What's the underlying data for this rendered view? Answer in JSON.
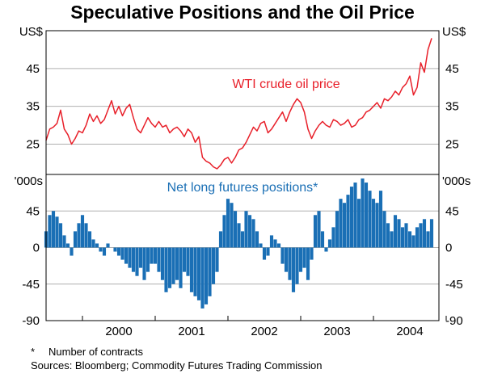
{
  "title": "Speculative Positions and the Oil Price",
  "colors": {
    "oil": "#e8202a",
    "positions": "#1a6fb5",
    "axis": "#000000",
    "grid": "#b0b0b0"
  },
  "chart_data": [
    {
      "type": "line",
      "name": "top-panel",
      "label": "WTI crude oil price",
      "unit_label": "US$",
      "ylim": [
        17,
        55
      ],
      "yticks": [
        25,
        35,
        45
      ],
      "x_range": [
        1999.5,
        2004.9
      ],
      "series": [
        {
          "name": "WTI crude oil price",
          "x": [
            1999.5,
            1999.55,
            1999.6,
            1999.65,
            1999.7,
            1999.75,
            1999.8,
            1999.85,
            1999.9,
            1999.95,
            2000.0,
            2000.05,
            2000.1,
            2000.15,
            2000.2,
            2000.25,
            2000.3,
            2000.35,
            2000.4,
            2000.45,
            2000.5,
            2000.55,
            2000.6,
            2000.65,
            2000.7,
            2000.75,
            2000.8,
            2000.85,
            2000.9,
            2000.95,
            2001.0,
            2001.05,
            2001.1,
            2001.15,
            2001.2,
            2001.25,
            2001.3,
            2001.35,
            2001.4,
            2001.45,
            2001.5,
            2001.55,
            2001.6,
            2001.65,
            2001.7,
            2001.75,
            2001.8,
            2001.85,
            2001.9,
            2001.95,
            2002.0,
            2002.05,
            2002.1,
            2002.15,
            2002.2,
            2002.25,
            2002.3,
            2002.35,
            2002.4,
            2002.45,
            2002.5,
            2002.55,
            2002.6,
            2002.65,
            2002.7,
            2002.75,
            2002.8,
            2002.85,
            2002.9,
            2002.95,
            2003.0,
            2003.05,
            2003.1,
            2003.15,
            2003.2,
            2003.25,
            2003.3,
            2003.35,
            2003.4,
            2003.45,
            2003.5,
            2003.55,
            2003.6,
            2003.65,
            2003.7,
            2003.75,
            2003.8,
            2003.85,
            2003.9,
            2003.95,
            2004.0,
            2004.05,
            2004.1,
            2004.15,
            2004.2,
            2004.25,
            2004.3,
            2004.35,
            2004.4,
            2004.45,
            2004.5,
            2004.55,
            2004.6,
            2004.65,
            2004.7,
            2004.75,
            2004.8
          ],
          "values": [
            26,
            29,
            29.5,
            30.5,
            34,
            29,
            27.5,
            25,
            26.5,
            28.5,
            28,
            30,
            33,
            31,
            32.5,
            30.5,
            31.5,
            34,
            36.5,
            33,
            35,
            32.5,
            34.5,
            35.5,
            32,
            29,
            28,
            30,
            32,
            30.5,
            29.5,
            31,
            29.5,
            30,
            28,
            29,
            29.5,
            28.5,
            27,
            29,
            28,
            25.5,
            27,
            21.5,
            20.5,
            20,
            19,
            18.5,
            19.5,
            21,
            21.5,
            20,
            21.5,
            23.5,
            24,
            25.5,
            27.5,
            29.5,
            28.5,
            30.5,
            31,
            28,
            29,
            30.5,
            32,
            33.5,
            31,
            33.5,
            35.5,
            37,
            36,
            33.5,
            29,
            26.5,
            28.5,
            30,
            31,
            30,
            29.5,
            31.5,
            31,
            30,
            30.5,
            31.5,
            29.5,
            30,
            31.5,
            32,
            33.5,
            34,
            35,
            36,
            34.5,
            37,
            36.5,
            37.5,
            39,
            38,
            40,
            41,
            43,
            38,
            40,
            46.5,
            44,
            50,
            53
          ]
        }
      ]
    },
    {
      "type": "bar",
      "name": "bottom-panel",
      "label": "Net long futures positions*",
      "unit_label": "'000s",
      "ylim": [
        -90,
        90
      ],
      "yticks": [
        45,
        0,
        -45,
        -90
      ],
      "x_range": [
        1999.5,
        2004.9
      ],
      "x": [
        1999.5,
        1999.55,
        1999.6,
        1999.65,
        1999.7,
        1999.75,
        1999.8,
        1999.85,
        1999.9,
        1999.95,
        2000.0,
        2000.05,
        2000.1,
        2000.15,
        2000.2,
        2000.25,
        2000.3,
        2000.35,
        2000.4,
        2000.45,
        2000.5,
        2000.55,
        2000.6,
        2000.65,
        2000.7,
        2000.75,
        2000.8,
        2000.85,
        2000.9,
        2000.95,
        2001.0,
        2001.05,
        2001.1,
        2001.15,
        2001.2,
        2001.25,
        2001.3,
        2001.35,
        2001.4,
        2001.45,
        2001.5,
        2001.55,
        2001.6,
        2001.65,
        2001.7,
        2001.75,
        2001.8,
        2001.85,
        2001.9,
        2001.95,
        2002.0,
        2002.05,
        2002.1,
        2002.15,
        2002.2,
        2002.25,
        2002.3,
        2002.35,
        2002.4,
        2002.45,
        2002.5,
        2002.55,
        2002.6,
        2002.65,
        2002.7,
        2002.75,
        2002.8,
        2002.85,
        2002.9,
        2002.95,
        2003.0,
        2003.05,
        2003.1,
        2003.15,
        2003.2,
        2003.25,
        2003.3,
        2003.35,
        2003.4,
        2003.45,
        2003.5,
        2003.55,
        2003.6,
        2003.65,
        2003.7,
        2003.75,
        2003.8,
        2003.85,
        2003.9,
        2003.95,
        2004.0,
        2004.05,
        2004.1,
        2004.15,
        2004.2,
        2004.25,
        2004.3,
        2004.35,
        2004.4,
        2004.45,
        2004.5,
        2004.55,
        2004.6,
        2004.65,
        2004.7,
        2004.75,
        2004.8
      ],
      "values": [
        20,
        40,
        45,
        38,
        30,
        15,
        5,
        -10,
        20,
        30,
        40,
        30,
        20,
        10,
        5,
        -5,
        -10,
        5,
        0,
        -5,
        -10,
        -15,
        -20,
        -25,
        -30,
        -35,
        -25,
        -40,
        -30,
        -20,
        -20,
        -30,
        -40,
        -55,
        -50,
        -45,
        -40,
        -50,
        -30,
        -35,
        -55,
        -60,
        -65,
        -75,
        -70,
        -60,
        -45,
        -30,
        20,
        40,
        60,
        55,
        45,
        30,
        20,
        45,
        40,
        35,
        20,
        5,
        -15,
        -10,
        15,
        10,
        5,
        -20,
        -30,
        -40,
        -55,
        -45,
        -30,
        -25,
        -40,
        -15,
        40,
        45,
        20,
        -5,
        10,
        25,
        45,
        60,
        55,
        65,
        75,
        80,
        60,
        85,
        80,
        70,
        60,
        55,
        70,
        45,
        30,
        20,
        40,
        35,
        25,
        30,
        20,
        15,
        25,
        30,
        35,
        20,
        35
      ],
      "xtick_labels": [
        "2000",
        "2001",
        "2002",
        "2003",
        "2004"
      ]
    }
  ],
  "footnote_marker": "*",
  "footnote_text": "Number of contracts",
  "sources": "Sources: Bloomberg; Commodity Futures Trading Commission"
}
